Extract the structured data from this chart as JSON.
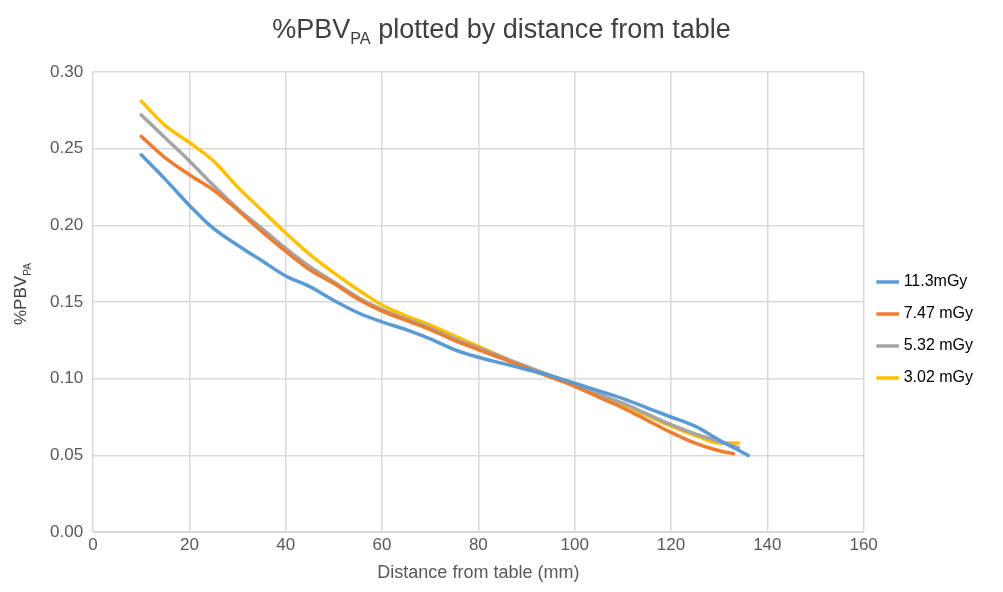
{
  "chart_data": {
    "type": "line",
    "title": "%PBV$_{PA}$ plotted by distance from table",
    "xlabel": "Distance from table (mm)",
    "ylabel": "%PBV$_{PA}$",
    "xlim": [
      0,
      160
    ],
    "xticks": [
      0,
      20,
      40,
      60,
      80,
      100,
      120,
      140,
      160
    ],
    "ylim": [
      0,
      0.3
    ],
    "yticks": [
      {
        "value": 0,
        "label": "0.00"
      },
      {
        "value": 0.05,
        "label": "0.05"
      },
      {
        "value": 0.1,
        "label": "0.10"
      },
      {
        "value": 0.15,
        "label": "0.15"
      },
      {
        "value": 0.2,
        "label": "0.20"
      },
      {
        "value": 0.25,
        "label": "0.25"
      },
      {
        "value": 0.3,
        "label": "0.30"
      }
    ],
    "grid": true,
    "legend": "right",
    "marker": "none",
    "line_style": "solid",
    "series": [
      {
        "name": "11.3mGy",
        "color": "#5b9bd5",
        "x": [
          10,
          15,
          20,
          25,
          30,
          35,
          40,
          45,
          50,
          55,
          60,
          65,
          70,
          75,
          80,
          85,
          90,
          95,
          100,
          105,
          110,
          115,
          120,
          125,
          130,
          136
        ],
        "values": [
          0.246,
          0.23,
          0.213,
          0.198,
          0.187,
          0.177,
          0.167,
          0.16,
          0.151,
          0.143,
          0.137,
          0.132,
          0.126,
          0.119,
          0.114,
          0.11,
          0.106,
          0.102,
          0.097,
          0.092,
          0.087,
          0.081,
          0.075,
          0.069,
          0.06,
          0.05
        ]
      },
      {
        "name": "7.47 mGy",
        "color": "#ed7d31",
        "x": [
          10,
          15,
          20,
          25,
          30,
          35,
          40,
          45,
          50,
          55,
          60,
          65,
          70,
          75,
          80,
          85,
          90,
          95,
          100,
          105,
          110,
          115,
          120,
          125,
          130,
          133
        ],
        "values": [
          0.258,
          0.244,
          0.233,
          0.223,
          0.21,
          0.196,
          0.183,
          0.171,
          0.162,
          0.152,
          0.144,
          0.138,
          0.132,
          0.125,
          0.119,
          0.113,
          0.107,
          0.101,
          0.095,
          0.088,
          0.081,
          0.073,
          0.065,
          0.058,
          0.053,
          0.051
        ]
      },
      {
        "name": "5.32 mGy",
        "color": "#a5a5a5",
        "x": [
          10,
          15,
          20,
          25,
          30,
          35,
          40,
          45,
          50,
          55,
          60,
          65,
          70,
          75,
          80,
          85,
          90,
          95,
          100,
          105,
          110,
          115,
          120,
          125,
          130,
          134
        ],
        "values": [
          0.272,
          0.257,
          0.242,
          0.226,
          0.211,
          0.198,
          0.185,
          0.173,
          0.163,
          0.153,
          0.145,
          0.139,
          0.133,
          0.126,
          0.12,
          0.114,
          0.108,
          0.102,
          0.096,
          0.09,
          0.084,
          0.077,
          0.07,
          0.064,
          0.059,
          0.055
        ]
      },
      {
        "name": "3.02 mGy",
        "color": "#ffc000",
        "x": [
          10,
          15,
          20,
          25,
          30,
          35,
          40,
          45,
          50,
          55,
          60,
          65,
          70,
          75,
          80,
          85,
          90,
          95,
          100,
          105,
          110,
          115,
          120,
          125,
          130,
          134
        ],
        "values": [
          0.281,
          0.265,
          0.254,
          0.242,
          0.225,
          0.21,
          0.195,
          0.181,
          0.169,
          0.158,
          0.148,
          0.141,
          0.135,
          0.128,
          0.121,
          0.114,
          0.107,
          0.101,
          0.096,
          0.089,
          0.083,
          0.076,
          0.069,
          0.063,
          0.058,
          0.058
        ]
      }
    ]
  }
}
